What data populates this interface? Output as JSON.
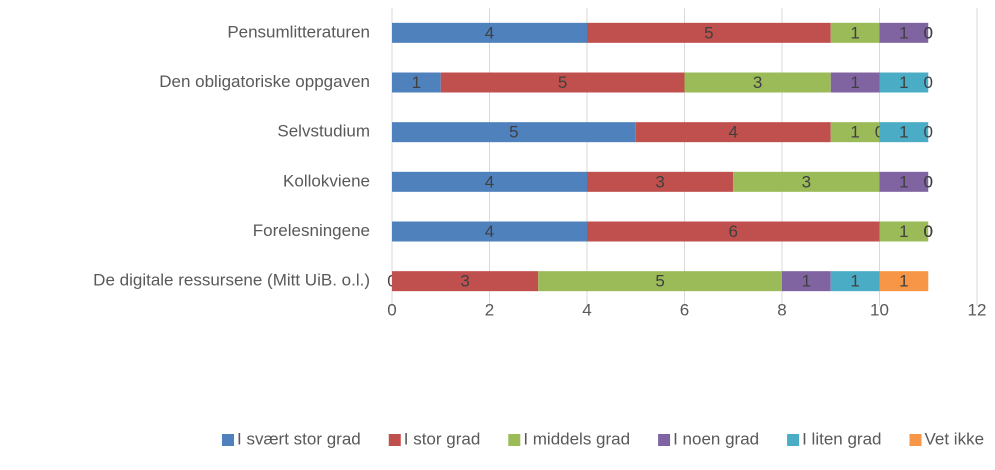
{
  "chart_data": {
    "type": "stacked_barh",
    "categories": [
      "Pensumlitteraturen",
      "Den obligatoriske oppgaven",
      "Selvstudium",
      "Kollokviene",
      "Forelesningene",
      "De digitale ressursene (Mitt UiB. o.l.)"
    ],
    "series": [
      {
        "name": "I svært stor grad",
        "color": "#4f81bd",
        "values": [
          4,
          1,
          5,
          4,
          4,
          0
        ]
      },
      {
        "name": "I stor grad",
        "color": "#c0504d",
        "values": [
          5,
          5,
          4,
          3,
          6,
          3
        ]
      },
      {
        "name": "I middels grad",
        "color": "#9bbb59",
        "values": [
          1,
          3,
          1,
          3,
          1,
          5
        ]
      },
      {
        "name": "I noen grad",
        "color": "#8064a2",
        "values": [
          1,
          1,
          0,
          1,
          0,
          1
        ]
      },
      {
        "name": "I liten grad",
        "color": "#4bacc6",
        "values": [
          0,
          1,
          1,
          0,
          0,
          1
        ]
      },
      {
        "name": "Vet ikke",
        "color": "#f79646",
        "values": [
          0,
          0,
          0,
          0,
          0,
          1
        ]
      }
    ],
    "xlim": [
      0,
      12
    ],
    "xticks": [
      0,
      2,
      4,
      6,
      8,
      10,
      12
    ],
    "grid": true,
    "legend": "bottom"
  }
}
